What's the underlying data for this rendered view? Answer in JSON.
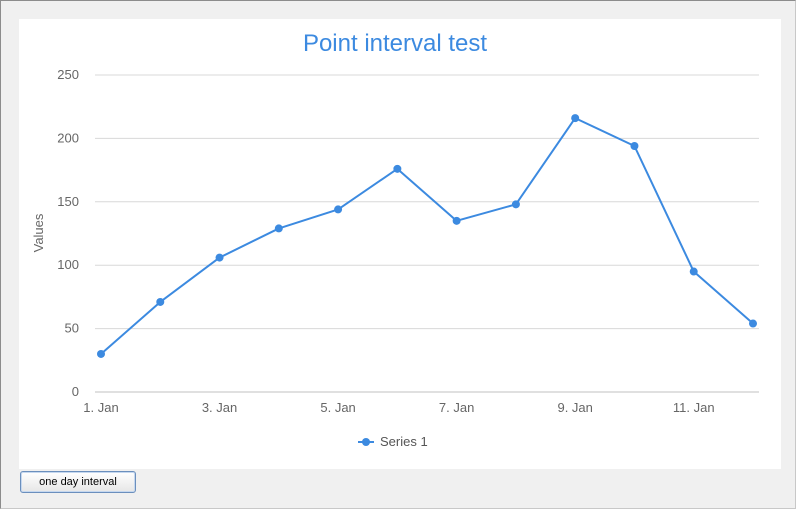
{
  "chart_data": {
    "type": "line",
    "title": "Point interval test",
    "ylabel": "Values",
    "xlabel": "",
    "ylim": [
      0,
      250
    ],
    "yticks": [
      0,
      50,
      100,
      150,
      200,
      250
    ],
    "xtick_labels": [
      "1. Jan",
      "3. Jan",
      "5. Jan",
      "7. Jan",
      "9. Jan",
      "11. Jan"
    ],
    "xtick_days": [
      1,
      3,
      5,
      7,
      9,
      11
    ],
    "x_days": [
      1,
      2,
      3,
      4,
      5,
      6,
      7,
      8,
      9,
      10,
      11,
      12
    ],
    "series": [
      {
        "name": "Series 1",
        "values": [
          30,
          71,
          106,
          129,
          144,
          176,
          135,
          148,
          216,
          194,
          95,
          54
        ]
      }
    ],
    "grid": true,
    "legend": "bottom-center",
    "color": "#3c8ae0",
    "title_color": "#3c8ae0"
  },
  "controls": {
    "interval_button_label": "one day interval"
  }
}
